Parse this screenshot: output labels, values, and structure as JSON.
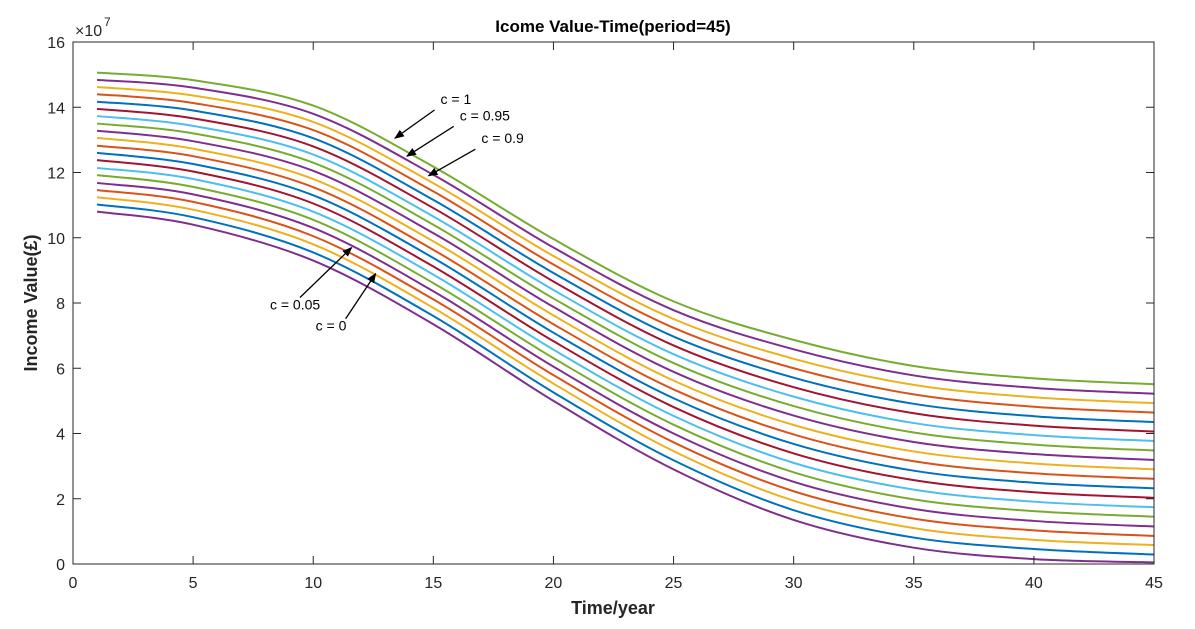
{
  "chart_data": {
    "type": "line",
    "title": "Icome Value-Time(period=45)",
    "xlabel": "Time/year",
    "ylabel": "Income Value(£)",
    "y_multiplier_base": "×10",
    "y_multiplier_exponent": "7",
    "xlim": [
      0,
      45
    ],
    "ylim": [
      0,
      16
    ],
    "x_ticks": [
      0,
      5,
      10,
      15,
      20,
      25,
      30,
      35,
      40,
      45
    ],
    "x_tick_labels": [
      "0",
      "5",
      "10",
      "15",
      "20",
      "25",
      "30",
      "35",
      "40",
      "45"
    ],
    "y_ticks": [
      0,
      2,
      4,
      6,
      8,
      10,
      12,
      14,
      16
    ],
    "y_tick_labels": [
      "0",
      "2",
      "4",
      "6",
      "8",
      "10",
      "12",
      "14",
      "16"
    ],
    "grid": false,
    "x": [
      1,
      5,
      10,
      15,
      20,
      25,
      30,
      35,
      40,
      45
    ],
    "series": [
      {
        "values": [
          10.8,
          10.4,
          9.3,
          7.35,
          5.0,
          2.9,
          1.35,
          0.5,
          0.15,
          0.05
        ],
        "color": "#7E2F8E"
      },
      {
        "values": [
          11.02,
          10.63,
          9.55,
          7.6,
          5.26,
          3.18,
          1.65,
          0.81,
          0.46,
          0.29
        ],
        "color": "#0072BD"
      },
      {
        "values": [
          11.24,
          10.86,
          9.8,
          7.85,
          5.53,
          3.46,
          1.94,
          1.1,
          0.74,
          0.58
        ],
        "color": "#EDB120"
      },
      {
        "values": [
          11.46,
          11.1,
          10.05,
          8.11,
          5.79,
          3.73,
          2.23,
          1.39,
          1.03,
          0.86
        ],
        "color": "#D95319"
      },
      {
        "values": [
          11.68,
          11.33,
          10.3,
          8.36,
          6.05,
          4.0,
          2.52,
          1.69,
          1.32,
          1.15
        ],
        "color": "#7E2F8E"
      },
      {
        "values": [
          11.92,
          11.56,
          10.55,
          8.61,
          6.31,
          4.27,
          2.81,
          1.98,
          1.62,
          1.45
        ],
        "color": "#77AC30"
      },
      {
        "values": [
          12.14,
          11.8,
          10.8,
          8.87,
          6.57,
          4.54,
          3.1,
          2.28,
          1.91,
          1.74
        ],
        "color": "#4DBEEE"
      },
      {
        "values": [
          12.38,
          12.03,
          11.05,
          9.12,
          6.83,
          4.81,
          3.39,
          2.57,
          2.2,
          2.03
        ],
        "color": "#A2142F"
      },
      {
        "values": [
          12.6,
          12.26,
          11.3,
          9.38,
          7.09,
          5.08,
          3.68,
          2.86,
          2.49,
          2.32
        ],
        "color": "#0072BD"
      },
      {
        "values": [
          12.82,
          12.5,
          11.55,
          9.63,
          7.35,
          5.35,
          3.97,
          3.15,
          2.78,
          2.61
        ],
        "color": "#D95319"
      },
      {
        "values": [
          13.06,
          12.73,
          11.8,
          9.89,
          7.62,
          5.62,
          4.26,
          3.45,
          3.08,
          2.9
        ],
        "color": "#EDB120"
      },
      {
        "values": [
          13.28,
          12.96,
          12.05,
          10.14,
          7.88,
          5.89,
          4.55,
          3.74,
          3.37,
          3.19
        ],
        "color": "#7E2F8E"
      },
      {
        "values": [
          13.5,
          13.2,
          12.3,
          10.4,
          8.14,
          6.16,
          4.84,
          4.03,
          3.66,
          3.48
        ],
        "color": "#77AC30"
      },
      {
        "values": [
          13.73,
          13.43,
          12.55,
          10.65,
          8.4,
          6.43,
          5.13,
          4.32,
          3.95,
          3.77
        ],
        "color": "#4DBEEE"
      },
      {
        "values": [
          13.95,
          13.66,
          12.8,
          10.91,
          8.66,
          6.7,
          5.42,
          4.62,
          4.24,
          4.06
        ],
        "color": "#A2142F"
      },
      {
        "values": [
          14.17,
          13.9,
          13.05,
          11.16,
          8.92,
          6.97,
          5.71,
          4.91,
          4.53,
          4.35
        ],
        "color": "#0072BD"
      },
      {
        "values": [
          14.4,
          14.13,
          13.3,
          11.42,
          9.18,
          7.24,
          6.0,
          5.2,
          4.82,
          4.64
        ],
        "color": "#D95319"
      },
      {
        "values": [
          14.62,
          14.36,
          13.55,
          11.67,
          9.44,
          7.51,
          6.29,
          5.49,
          5.11,
          4.93
        ],
        "color": "#EDB120"
      },
      {
        "values": [
          14.84,
          14.6,
          13.8,
          11.93,
          9.7,
          7.78,
          6.58,
          5.78,
          5.4,
          5.22
        ],
        "color": "#7E2F8E"
      },
      {
        "values": [
          15.06,
          14.83,
          14.05,
          12.18,
          9.96,
          8.05,
          6.87,
          6.07,
          5.69,
          5.51
        ],
        "color": "#77AC30"
      }
    ],
    "annotations": [
      {
        "text": "c = 1",
        "text_at": [
          15.3,
          14.1
        ],
        "arrow_to": [
          13.4,
          13.05
        ]
      },
      {
        "text": "c = 0.95",
        "text_at": [
          16.1,
          13.6
        ],
        "arrow_to": [
          13.9,
          12.5
        ]
      },
      {
        "text": "c = 0.9",
        "text_at": [
          17.0,
          12.9
        ],
        "arrow_to": [
          14.8,
          11.9
        ]
      },
      {
        "text": "c = 0.05",
        "text_at": [
          8.2,
          7.8
        ],
        "arrow_to": [
          11.6,
          9.7
        ]
      },
      {
        "text": "c = 0",
        "text_at": [
          10.1,
          7.15
        ],
        "arrow_to": [
          12.6,
          8.9
        ]
      }
    ]
  }
}
